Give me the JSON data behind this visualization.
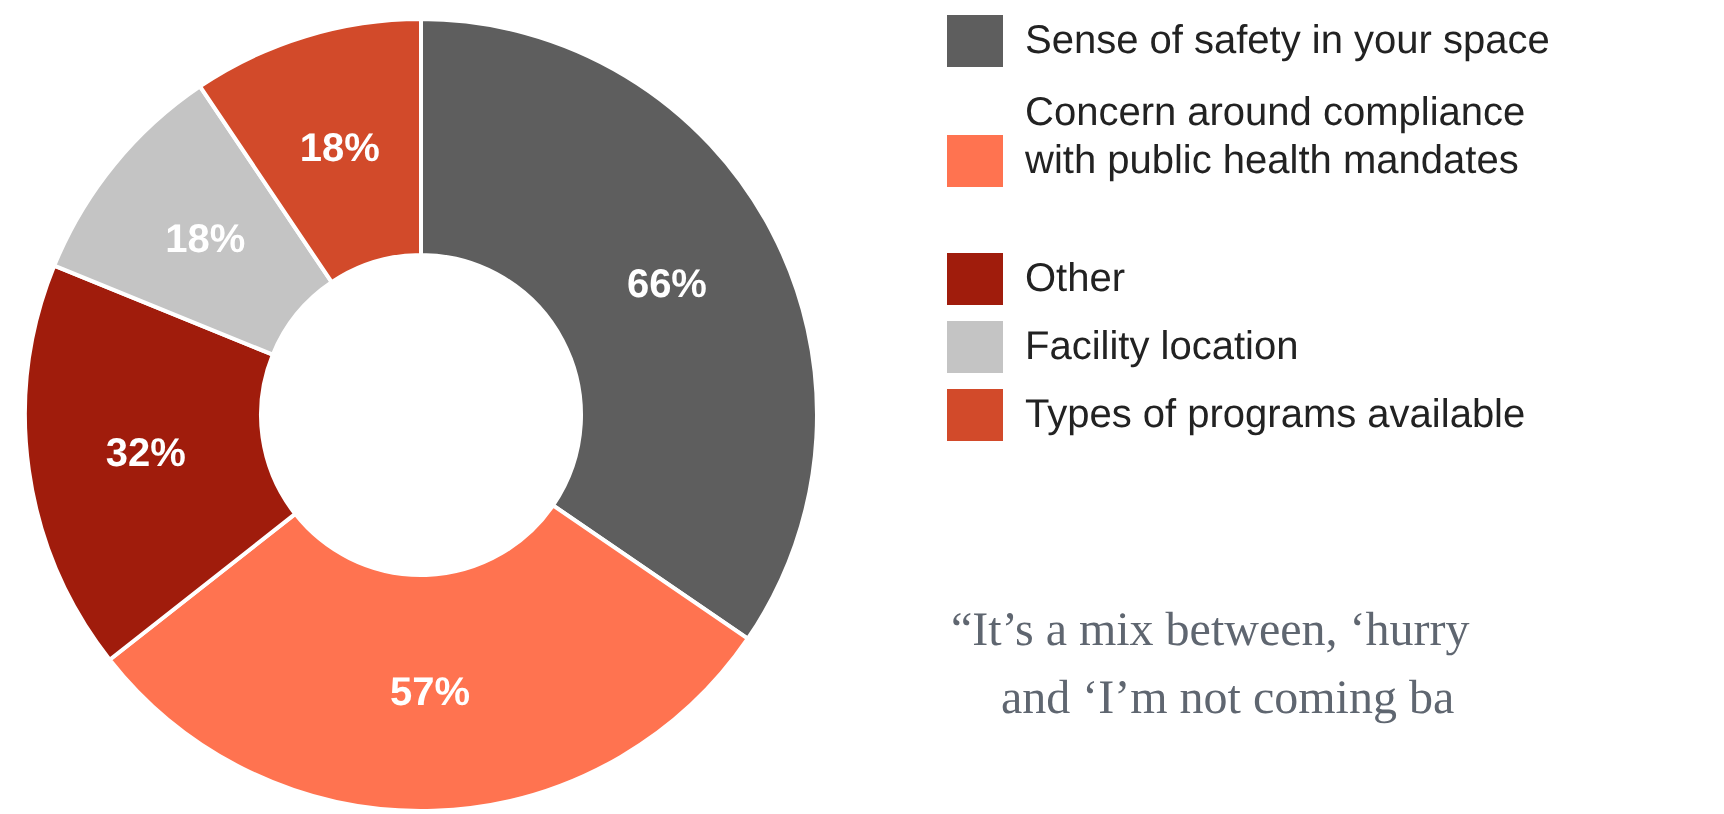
{
  "chart_data": {
    "type": "donut",
    "categories": [
      "Sense of safety in your space",
      "Concern around compliance\nwith public health mandates",
      "Other",
      "Facility location",
      "Types of programs available"
    ],
    "values": [
      66,
      57,
      32,
      18,
      18
    ],
    "colors": [
      "#5e5e5e",
      "#ff7350",
      "#a01c0c",
      "#c4c4c4",
      "#d24a2a"
    ],
    "value_labels": [
      "66%",
      "57%",
      "32%",
      "18%",
      "18%"
    ],
    "legend": "right",
    "annotations": [
      "“It’s a mix between, ‘hurry",
      "and ‘I’m not coming ba"
    ]
  }
}
